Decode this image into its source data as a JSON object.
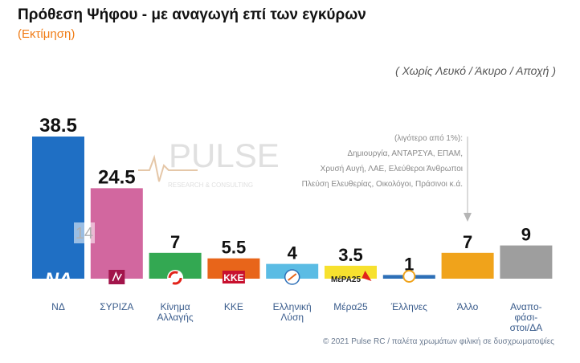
{
  "header": {
    "title": "Πρόθεση Ψήφου - με αναγωγή επί των εγκύρων",
    "subtitle": "(Εκτίμηση)",
    "note": "( Χωρίς Λευκό / Άκυρο / Αποχή )"
  },
  "watermark": {
    "brand": "PULSE",
    "tagline": "RESEARCH & CONSULTING"
  },
  "annotation": {
    "lines": [
      "(λιγότερο από 1%):",
      "Δημιουργία, ΑΝΤΑΡΣΥΑ, ΕΠΑΜ,",
      "Χρυσή Αυγή, ΛΑΕ, Ελεύθεροι Άνθρωποι",
      "Πλεύση Ελευθερίας, Οικολόγοι, Πράσινοι κ.ά."
    ]
  },
  "inner_label": "14",
  "logo_texts": {
    "nd": "ΝΔ",
    "kke": "ΚΚΕ",
    "mera25": "ΜέΡΑ25"
  },
  "footer": "© 2021 Pulse RC  /  παλέτα χρωμάτων φιλική σε δυσχρωματοψίες",
  "chart_data": {
    "type": "bar",
    "categories": [
      "ΝΔ",
      "ΣΥΡΙΖΑ",
      "Κίνημα Αλλαγής",
      "ΚΚΕ",
      "Ελληνική Λύση",
      "Μέρα25",
      "Έλληνες",
      "Άλλο",
      "Αναποφάσιστοι/ΔΑ"
    ],
    "category_label_lines": [
      [
        "ΝΔ"
      ],
      [
        "ΣΥΡΙΖΑ"
      ],
      [
        "Κίνημα",
        "Αλλαγής"
      ],
      [
        "ΚΚΕ"
      ],
      [
        "Ελληνική",
        "Λύση"
      ],
      [
        "Μέρα25"
      ],
      [
        "Έλληνες"
      ],
      [
        "Άλλο"
      ],
      [
        "Αναπο-",
        "φάσι-",
        "στοι/ΔΑ"
      ]
    ],
    "values": [
      38.5,
      24.5,
      7,
      5.5,
      4,
      3.5,
      1,
      7,
      9
    ],
    "value_labels": [
      "38.5",
      "24.5",
      "7",
      "5.5",
      "4",
      "3.5",
      "1",
      "7",
      "9"
    ],
    "colors": [
      "#1f6fc4",
      "#d2679f",
      "#33a852",
      "#e8651a",
      "#5bbce4",
      "#f7e12e",
      "#2d6fb7",
      "#f0a31b",
      "#9e9e9e"
    ],
    "ylim": [
      0,
      40
    ]
  }
}
